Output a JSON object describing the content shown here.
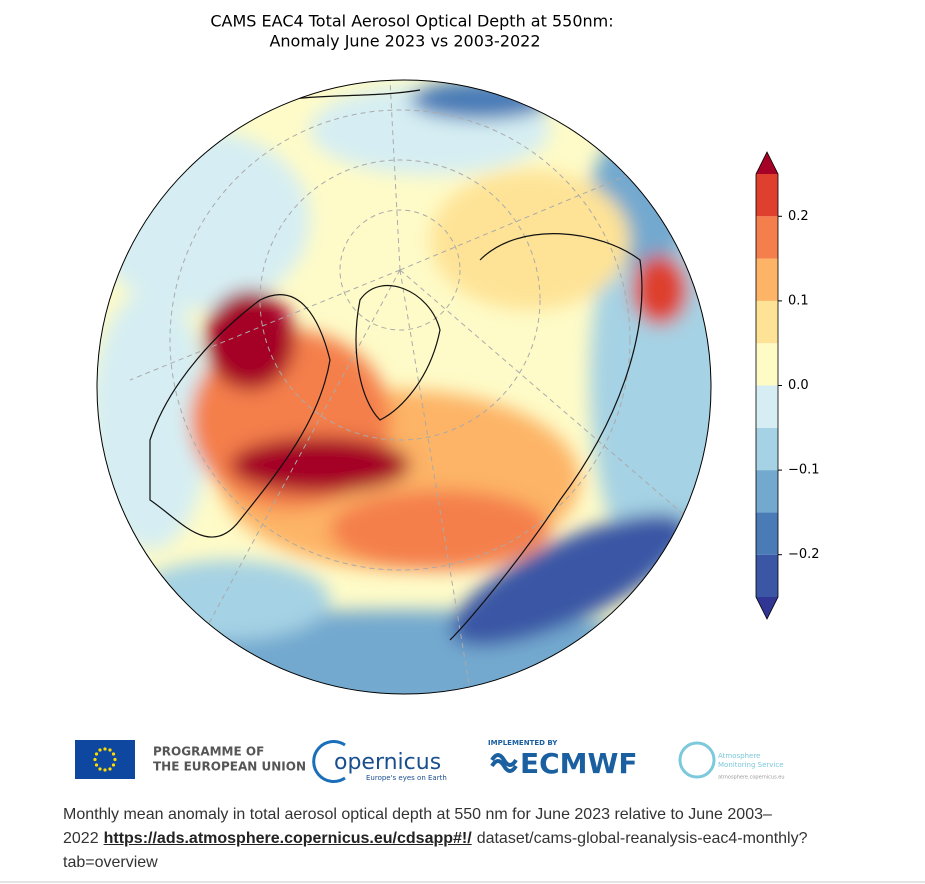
{
  "chart_data": {
    "type": "map",
    "title": "CAMS EAC4 Total Aerosol Optical Depth at 550nm:",
    "subtitle": "Anomaly June 2023 vs 2003-2022",
    "colorbar": {
      "levels": [
        -0.25,
        -0.2,
        -0.15,
        -0.1,
        -0.05,
        0,
        0.05,
        0.1,
        0.15,
        0.2,
        0.25
      ],
      "colors": [
        "#3b56a5",
        "#4a7bb7",
        "#73a9cf",
        "#a5d2e4",
        "#d6eef3",
        "#fefbc4",
        "#fee396",
        "#fdb466",
        "#f47f4c",
        "#de3f2e"
      ],
      "over_color": "#a50026",
      "under_color": "#313695",
      "ylim": [
        -0.25,
        0.25
      ],
      "yticks": [
        {
          "value": -0.2,
          "label": "−0.2"
        },
        {
          "value": -0.1,
          "label": "−0.1"
        },
        {
          "value": 0,
          "label": "0.0"
        },
        0.1,
        0.2
      ]
    }
  },
  "footer": {
    "eu_text": [
      "PROGRAMME OF",
      "THE EUROPEAN UNION"
    ],
    "copernicus": {
      "name": "opernicus",
      "tagline": "Europe's eyes on Earth"
    },
    "ecmwf": {
      "label": "IMPLEMENTED BY",
      "name": "ECMWF"
    },
    "cams": {
      "name": [
        "Atmosphere",
        "Monitoring Service"
      ],
      "url": "atmosphere.copernicus.eu"
    }
  },
  "caption": {
    "text": "Monthly mean anomaly in total aerosol optical depth at 550 nm for June 2023 relative to June 2003–2022",
    "link": "https://ads.atmosphere.copernicus.eu/cdsapp#!/",
    "rest": "dataset/cams-global-reanalysis-eac4-monthly?tab=overview"
  }
}
